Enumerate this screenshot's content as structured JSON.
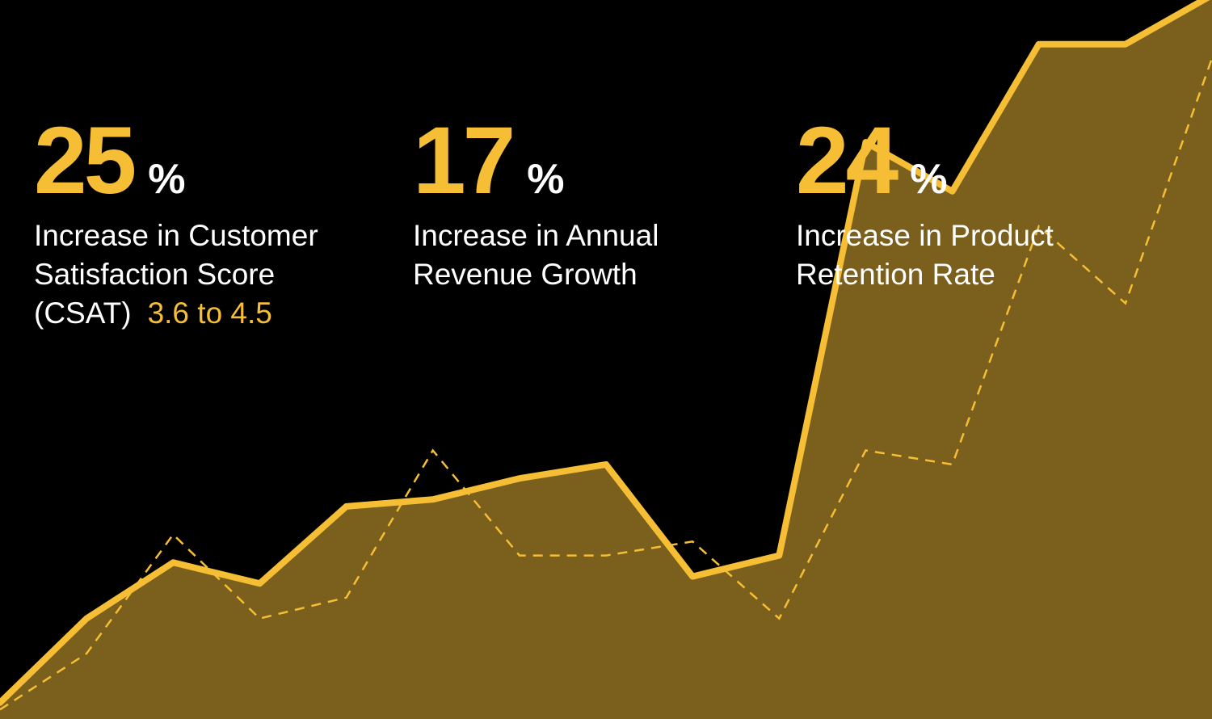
{
  "colors": {
    "background": "#000000",
    "accent": "#F5BE34",
    "area_fill": "#7B5F1D",
    "text": "#FFFFFF"
  },
  "stats": [
    {
      "value": "25",
      "unit": "%",
      "lines": [
        "Increase in Customer",
        "Satisfaction Score",
        "(CSAT)"
      ],
      "highlight": "3.6 to 4.5"
    },
    {
      "value": "17",
      "unit": "%",
      "lines": [
        "Increase in Annual",
        "Revenue Growth"
      ]
    },
    {
      "value": "24",
      "unit": "%",
      "lines": [
        "Increase in Product",
        "Retention Rate"
      ]
    }
  ],
  "chart_data": {
    "type": "area",
    "x": [
      0,
      1,
      2,
      3,
      4,
      5,
      6,
      7,
      8,
      9,
      10,
      11,
      12,
      13,
      14
    ],
    "ylim": [
      0,
      100
    ],
    "grid": false,
    "legend": "none",
    "axes_visible": false,
    "series": [
      {
        "style": "solid-area",
        "values": [
          2,
          14,
          22,
          19,
          30,
          31,
          34,
          36,
          20,
          23,
          82,
          75,
          96,
          96,
          103
        ]
      },
      {
        "style": "dashed",
        "values": [
          1,
          9,
          26,
          14,
          17,
          38,
          23,
          23,
          25,
          14,
          38,
          36,
          70,
          59,
          94
        ]
      }
    ]
  }
}
